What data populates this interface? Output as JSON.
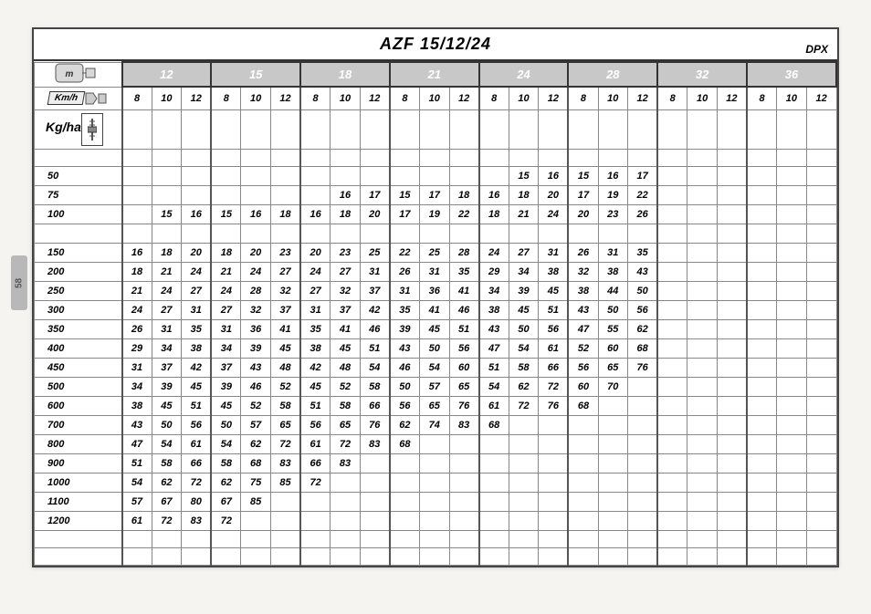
{
  "pageTab": "58",
  "title": "AZF 15/12/24",
  "cornerLabel": "DPX",
  "kghaLabel": "Kg/ha",
  "kmhLabel": "Km/h",
  "widths": [
    "12",
    "15",
    "18",
    "21",
    "24",
    "28",
    "32",
    "36"
  ],
  "speeds": [
    "8",
    "10",
    "12"
  ],
  "rates": [
    "50",
    "75",
    "100",
    "",
    "150",
    "200",
    "250",
    "300",
    "350",
    "400",
    "450",
    "500",
    "600",
    "700",
    "800",
    "900",
    "1000",
    "1100",
    "1200"
  ],
  "grid": [
    [
      "",
      "",
      "",
      "",
      "",
      "",
      "",
      "",
      "",
      "",
      "",
      "",
      "",
      "15",
      "16",
      "15",
      "16",
      "17",
      "",
      "",
      "",
      "",
      "",
      ""
    ],
    [
      "",
      "",
      "",
      "",
      "",
      "",
      "",
      "16",
      "17",
      "15",
      "17",
      "18",
      "16",
      "18",
      "20",
      "17",
      "19",
      "22",
      "",
      "",
      "",
      "",
      "",
      ""
    ],
    [
      "",
      "15",
      "16",
      "15",
      "16",
      "18",
      "16",
      "18",
      "20",
      "17",
      "19",
      "22",
      "18",
      "21",
      "24",
      "20",
      "23",
      "26",
      "",
      "",
      "",
      "",
      "",
      ""
    ],
    [
      "",
      "",
      "",
      "",
      "",
      "",
      "",
      "",
      "",
      "",
      "",
      "",
      "",
      "",
      "",
      "",
      "",
      "",
      "",
      "",
      "",
      "",
      "",
      ""
    ],
    [
      "16",
      "18",
      "20",
      "18",
      "20",
      "23",
      "20",
      "23",
      "25",
      "22",
      "25",
      "28",
      "24",
      "27",
      "31",
      "26",
      "31",
      "35",
      "",
      "",
      "",
      "",
      "",
      ""
    ],
    [
      "18",
      "21",
      "24",
      "21",
      "24",
      "27",
      "24",
      "27",
      "31",
      "26",
      "31",
      "35",
      "29",
      "34",
      "38",
      "32",
      "38",
      "43",
      "",
      "",
      "",
      "",
      "",
      ""
    ],
    [
      "21",
      "24",
      "27",
      "24",
      "28",
      "32",
      "27",
      "32",
      "37",
      "31",
      "36",
      "41",
      "34",
      "39",
      "45",
      "38",
      "44",
      "50",
      "",
      "",
      "",
      "",
      "",
      ""
    ],
    [
      "24",
      "27",
      "31",
      "27",
      "32",
      "37",
      "31",
      "37",
      "42",
      "35",
      "41",
      "46",
      "38",
      "45",
      "51",
      "43",
      "50",
      "56",
      "",
      "",
      "",
      "",
      "",
      ""
    ],
    [
      "26",
      "31",
      "35",
      "31",
      "36",
      "41",
      "35",
      "41",
      "46",
      "39",
      "45",
      "51",
      "43",
      "50",
      "56",
      "47",
      "55",
      "62",
      "",
      "",
      "",
      "",
      "",
      ""
    ],
    [
      "29",
      "34",
      "38",
      "34",
      "39",
      "45",
      "38",
      "45",
      "51",
      "43",
      "50",
      "56",
      "47",
      "54",
      "61",
      "52",
      "60",
      "68",
      "",
      "",
      "",
      "",
      "",
      ""
    ],
    [
      "31",
      "37",
      "42",
      "37",
      "43",
      "48",
      "42",
      "48",
      "54",
      "46",
      "54",
      "60",
      "51",
      "58",
      "66",
      "56",
      "65",
      "76",
      "",
      "",
      "",
      "",
      "",
      ""
    ],
    [
      "34",
      "39",
      "45",
      "39",
      "46",
      "52",
      "45",
      "52",
      "58",
      "50",
      "57",
      "65",
      "54",
      "62",
      "72",
      "60",
      "70",
      "",
      "",
      "",
      "",
      "",
      "",
      ""
    ],
    [
      "38",
      "45",
      "51",
      "45",
      "52",
      "58",
      "51",
      "58",
      "66",
      "56",
      "65",
      "76",
      "61",
      "72",
      "76",
      "68",
      "",
      "",
      "",
      "",
      "",
      "",
      "",
      ""
    ],
    [
      "43",
      "50",
      "56",
      "50",
      "57",
      "65",
      "56",
      "65",
      "76",
      "62",
      "74",
      "83",
      "68",
      "",
      "",
      "",
      "",
      "",
      "",
      "",
      "",
      "",
      "",
      ""
    ],
    [
      "47",
      "54",
      "61",
      "54",
      "62",
      "72",
      "61",
      "72",
      "83",
      "68",
      "",
      "",
      "",
      "",
      "",
      "",
      "",
      "",
      "",
      "",
      "",
      "",
      "",
      ""
    ],
    [
      "51",
      "58",
      "66",
      "58",
      "68",
      "83",
      "66",
      "83",
      "",
      "",
      "",
      "",
      "",
      "",
      "",
      "",
      "",
      "",
      "",
      "",
      "",
      "",
      "",
      ""
    ],
    [
      "54",
      "62",
      "72",
      "62",
      "75",
      "85",
      "72",
      "",
      "",
      "",
      "",
      "",
      "",
      "",
      "",
      "",
      "",
      "",
      "",
      "",
      "",
      "",
      "",
      ""
    ],
    [
      "57",
      "67",
      "80",
      "67",
      "85",
      "",
      "",
      "",
      "",
      "",
      "",
      "",
      "",
      "",
      "",
      "",
      "",
      "",
      "",
      "",
      "",
      "",
      "",
      ""
    ],
    [
      "61",
      "72",
      "83",
      "72",
      "",
      "",
      "",
      "",
      "",
      "",
      "",
      "",
      "",
      "",
      "",
      "",
      "",
      "",
      "",
      "",
      "",
      "",
      "",
      ""
    ]
  ],
  "trailingBlankRows": 2,
  "style": {
    "widthHeaderBg": "#c8c8c8",
    "widthHeaderFg": "#ffffff",
    "borderColor": "#888888",
    "groupBorderColor": "#333333"
  }
}
